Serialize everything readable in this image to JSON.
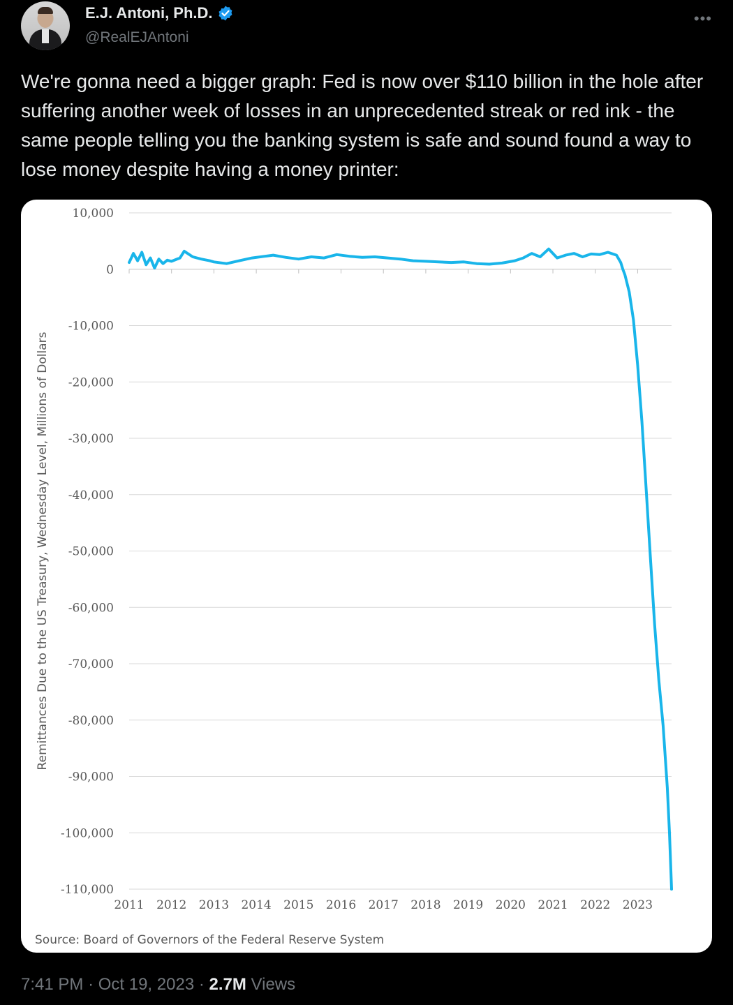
{
  "user": {
    "display_name": "E.J. Antoni, Ph.D.",
    "handle": "@RealEJAntoni",
    "verified": true,
    "verified_color": "#1d9bf0"
  },
  "tweet": {
    "text": "We're gonna need a bigger graph: Fed is now over $110 billion in the hole after suffering another week of losses in an unprecedented streak or red ink - the same people telling you the banking system is safe and sound found a way to lose money despite having a money printer:",
    "time": "7:41 PM",
    "date": "Oct 19, 2023",
    "views_count": "2.7M",
    "views_label": "Views"
  },
  "chart_data": {
    "type": "line",
    "title": "",
    "xlabel": "",
    "ylabel": "Remittances Due to the US Treasury, Wednesday Level, Millions of Dollars",
    "source": "Source: Board of Governors of the Federal Reserve System",
    "ylim": [
      -110000,
      10000
    ],
    "xlim": [
      2011,
      2023.8
    ],
    "yticks": [
      10000,
      0,
      -10000,
      -20000,
      -30000,
      -40000,
      -50000,
      -60000,
      -70000,
      -80000,
      -90000,
      -100000,
      -110000
    ],
    "ytick_labels": [
      "10,000",
      "0",
      "-10,000",
      "-20,000",
      "-30,000",
      "-40,000",
      "-50,000",
      "-60,000",
      "-70,000",
      "-80,000",
      "-90,000",
      "-100,000",
      "-110,000"
    ],
    "xtick_labels": [
      "2011",
      "2012",
      "2013",
      "2014",
      "2015",
      "2016",
      "2017",
      "2018",
      "2019",
      "2020",
      "2021",
      "2022",
      "2023"
    ],
    "grid": true,
    "series": [
      {
        "color": "#19b5ea",
        "x": [
          2011.0,
          2011.1,
          2011.2,
          2011.3,
          2011.4,
          2011.5,
          2011.6,
          2011.7,
          2011.8,
          2011.9,
          2012.0,
          2012.2,
          2012.3,
          2012.5,
          2012.7,
          2012.9,
          2013.0,
          2013.3,
          2013.6,
          2013.9,
          2014.2,
          2014.4,
          2014.7,
          2015.0,
          2015.3,
          2015.6,
          2015.9,
          2016.2,
          2016.5,
          2016.8,
          2017.1,
          2017.4,
          2017.7,
          2018.0,
          2018.3,
          2018.6,
          2018.9,
          2019.2,
          2019.5,
          2019.8,
          2020.1,
          2020.3,
          2020.5,
          2020.7,
          2020.9,
          2021.1,
          2021.3,
          2021.5,
          2021.7,
          2021.9,
          2022.1,
          2022.3,
          2022.5,
          2022.6,
          2022.65,
          2022.7,
          2022.8,
          2022.9,
          2023.0,
          2023.1,
          2023.2,
          2023.3,
          2023.4,
          2023.5,
          2023.6,
          2023.7,
          2023.75,
          2023.8
        ],
        "y": [
          1200,
          2800,
          1500,
          3000,
          800,
          2000,
          200,
          1800,
          1000,
          1600,
          1400,
          2000,
          3200,
          2200,
          1800,
          1500,
          1300,
          1000,
          1500,
          2000,
          2300,
          2500,
          2100,
          1800,
          2200,
          2000,
          2600,
          2300,
          2100,
          2200,
          2000,
          1800,
          1500,
          1400,
          1300,
          1200,
          1300,
          1000,
          900,
          1100,
          1500,
          2000,
          2800,
          2200,
          3600,
          2000,
          2500,
          2800,
          2200,
          2700,
          2600,
          3000,
          2500,
          1200,
          0,
          -1000,
          -4000,
          -9000,
          -17000,
          -27000,
          -39000,
          -51000,
          -63000,
          -73000,
          -81000,
          -92000,
          -100000,
          -110000
        ]
      }
    ]
  }
}
